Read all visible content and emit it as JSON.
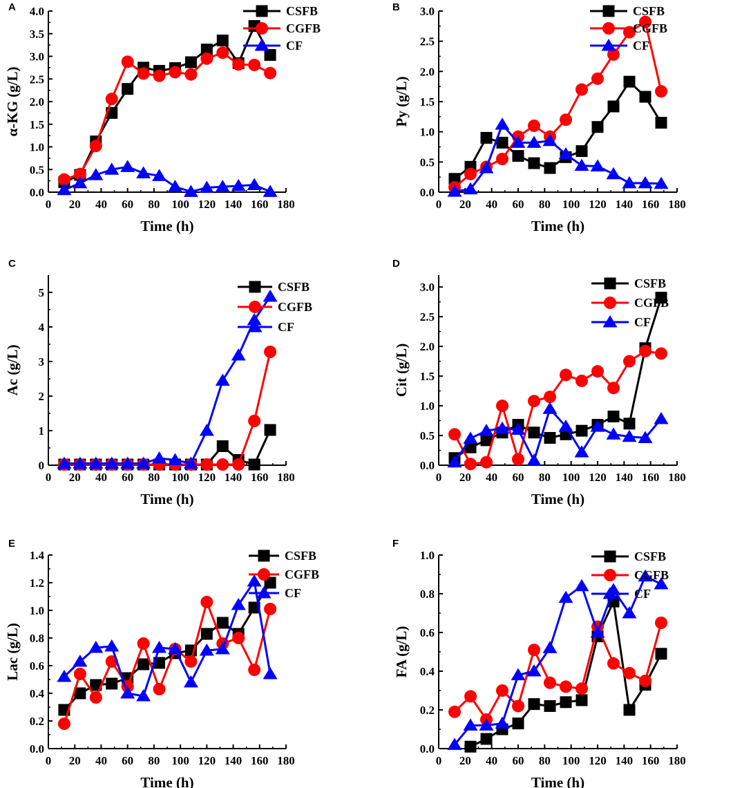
{
  "figure": {
    "colors": {
      "CSFB": "#000000",
      "CGFB": "#ff0000",
      "CF": "#0000ff"
    },
    "series_names": [
      "CSFB",
      "CGFB",
      "CF"
    ]
  },
  "chart_data": [
    {
      "panel": "A",
      "type": "line",
      "xlabel": "Time (h)",
      "ylabel": "α-KG (g/L)",
      "xlim": [
        0,
        180
      ],
      "ylim": [
        0,
        4.0
      ],
      "xticks": [
        "0",
        "20",
        "40",
        "60",
        "80",
        "100",
        "120",
        "140",
        "160",
        "180"
      ],
      "yticks": [
        "0.0",
        "0.5",
        "1.0",
        "1.5",
        "2.0",
        "2.5",
        "3.0",
        "3.5",
        "4.0"
      ],
      "ytick_values": [
        0,
        0.5,
        1,
        1.5,
        2,
        2.5,
        3,
        3.5,
        4
      ],
      "legend": [
        "CSFB",
        "CGFB",
        "CF"
      ],
      "series": [
        {
          "name": "CSFB",
          "x": [
            12,
            24,
            36,
            48,
            60,
            72,
            84,
            96,
            108,
            120,
            132,
            144,
            156,
            168
          ],
          "values": [
            0.22,
            0.38,
            1.12,
            1.75,
            2.28,
            2.75,
            2.68,
            2.74,
            2.87,
            3.15,
            3.35,
            2.85,
            3.67,
            3.03
          ]
        },
        {
          "name": "CGFB",
          "x": [
            12,
            24,
            36,
            48,
            60,
            72,
            84,
            96,
            108,
            120,
            132,
            144,
            156,
            168
          ],
          "values": [
            0.28,
            0.4,
            1.02,
            2.06,
            2.88,
            2.62,
            2.57,
            2.65,
            2.6,
            2.95,
            3.08,
            2.82,
            2.81,
            2.63
          ]
        },
        {
          "name": "CF",
          "x": [
            12,
            24,
            36,
            48,
            60,
            72,
            84,
            96,
            108,
            120,
            132,
            144,
            156,
            168
          ],
          "values": [
            0.05,
            0.2,
            0.38,
            0.5,
            0.56,
            0.42,
            0.36,
            0.12,
            0.01,
            0.1,
            0.12,
            0.14,
            0.16,
            0.01
          ]
        }
      ]
    },
    {
      "panel": "B",
      "type": "line",
      "xlabel": "Time (h)",
      "ylabel": "Py (g/L)",
      "xlim": [
        0,
        180
      ],
      "ylim": [
        0,
        3.0
      ],
      "xticks": [
        "0",
        "20",
        "40",
        "60",
        "80",
        "100",
        "120",
        "140",
        "160",
        "180"
      ],
      "yticks": [
        "0.0",
        "0.5",
        "1.0",
        "1.5",
        "2.0",
        "2.5",
        "3.0"
      ],
      "ytick_values": [
        0,
        0.5,
        1,
        1.5,
        2,
        2.5,
        3
      ],
      "legend": [
        "CSFB",
        "CGFB",
        "CF"
      ],
      "series": [
        {
          "name": "CSFB",
          "x": [
            12,
            24,
            36,
            48,
            60,
            72,
            84,
            96,
            108,
            120,
            132,
            144,
            156,
            168
          ],
          "values": [
            0.22,
            0.42,
            0.9,
            0.82,
            0.6,
            0.48,
            0.4,
            0.58,
            0.68,
            1.08,
            1.42,
            1.83,
            1.58,
            1.15
          ]
        },
        {
          "name": "CGFB",
          "x": [
            12,
            24,
            36,
            48,
            60,
            72,
            84,
            96,
            108,
            120,
            132,
            144,
            156,
            168
          ],
          "values": [
            0.08,
            0.3,
            0.42,
            0.55,
            0.92,
            1.1,
            0.92,
            1.2,
            1.7,
            1.88,
            2.28,
            2.65,
            2.82,
            1.67
          ]
        },
        {
          "name": "CF",
          "x": [
            12,
            24,
            36,
            48,
            60,
            72,
            84,
            96,
            108,
            120,
            132,
            144,
            156,
            168
          ],
          "values": [
            0.01,
            0.05,
            0.4,
            1.12,
            0.82,
            0.82,
            0.85,
            0.63,
            0.44,
            0.43,
            0.3,
            0.15,
            0.15,
            0.14
          ]
        }
      ]
    },
    {
      "panel": "C",
      "type": "line",
      "xlabel": "Time (h)",
      "ylabel": "Ac (g/L)",
      "xlim": [
        0,
        180
      ],
      "ylim": [
        0,
        5.5
      ],
      "xticks": [
        "0",
        "20",
        "40",
        "60",
        "80",
        "100",
        "120",
        "140",
        "160",
        "180"
      ],
      "yticks": [
        "0",
        "1",
        "2",
        "3",
        "4",
        "5"
      ],
      "ytick_values": [
        0,
        1,
        2,
        3,
        4,
        5
      ],
      "legend": [
        "CSFB",
        "CGFB",
        "CF"
      ],
      "series": [
        {
          "name": "CSFB",
          "x": [
            12,
            24,
            36,
            48,
            60,
            72,
            84,
            96,
            108,
            120,
            132,
            144,
            156,
            168
          ],
          "values": [
            0.02,
            0.02,
            0.02,
            0.02,
            0.02,
            0.02,
            0.02,
            0.02,
            0.02,
            0.02,
            0.55,
            0.15,
            0.02,
            1.02
          ]
        },
        {
          "name": "CGFB",
          "x": [
            12,
            24,
            36,
            48,
            60,
            72,
            84,
            96,
            108,
            120,
            132,
            144,
            156,
            168
          ],
          "values": [
            0.02,
            0.02,
            0.02,
            0.02,
            0.02,
            0.02,
            0.02,
            0.02,
            0.02,
            0.02,
            0.02,
            0.02,
            1.28,
            3.28
          ]
        },
        {
          "name": "CF",
          "x": [
            12,
            24,
            36,
            48,
            60,
            72,
            84,
            96,
            108,
            120,
            132,
            144,
            156,
            168
          ],
          "values": [
            0.05,
            0.05,
            0.05,
            0.05,
            0.05,
            0.05,
            0.2,
            0.15,
            0.05,
            1.0,
            2.45,
            3.18,
            4.2,
            4.88
          ]
        }
      ]
    },
    {
      "panel": "D",
      "type": "line",
      "xlabel": "Time (h)",
      "ylabel": "Cit (g/L)",
      "xlim": [
        0,
        180
      ],
      "ylim": [
        0,
        3.2
      ],
      "xticks": [
        "0",
        "20",
        "40",
        "60",
        "80",
        "100",
        "120",
        "140",
        "160",
        "180"
      ],
      "yticks": [
        "0.0",
        "0.5",
        "1.0",
        "1.5",
        "2.0",
        "2.5",
        "3.0"
      ],
      "ytick_values": [
        0,
        0.5,
        1,
        1.5,
        2,
        2.5,
        3
      ],
      "legend": [
        "CSFB",
        "CGFB",
        "CF"
      ],
      "series": [
        {
          "name": "CSFB",
          "x": [
            12,
            24,
            36,
            48,
            60,
            72,
            84,
            96,
            108,
            120,
            132,
            144,
            156,
            168
          ],
          "values": [
            0.12,
            0.3,
            0.42,
            0.55,
            0.68,
            0.55,
            0.46,
            0.52,
            0.58,
            0.68,
            0.82,
            0.7,
            1.97,
            2.82
          ]
        },
        {
          "name": "CGFB",
          "x": [
            12,
            24,
            36,
            48,
            60,
            72,
            84,
            96,
            108,
            120,
            132,
            144,
            156,
            168
          ],
          "values": [
            0.52,
            0.02,
            0.05,
            1.0,
            0.1,
            1.08,
            1.15,
            1.52,
            1.42,
            1.58,
            1.3,
            1.75,
            1.92,
            1.88
          ]
        },
        {
          "name": "CF",
          "x": [
            12,
            24,
            36,
            48,
            60,
            72,
            84,
            96,
            108,
            120,
            132,
            144,
            156,
            168
          ],
          "values": [
            0.05,
            0.45,
            0.58,
            0.62,
            0.6,
            0.08,
            0.95,
            0.65,
            0.22,
            0.65,
            0.52,
            0.48,
            0.46,
            0.78
          ]
        }
      ]
    },
    {
      "panel": "E",
      "type": "line",
      "xlabel": "Time (h)",
      "ylabel": "Lac (g/L)",
      "xlim": [
        0,
        180
      ],
      "ylim": [
        0,
        1.4
      ],
      "xticks": [
        "0",
        "20",
        "40",
        "60",
        "80",
        "100",
        "120",
        "140",
        "160",
        "180"
      ],
      "yticks": [
        "0.0",
        "0.2",
        "0.4",
        "0.6",
        "0.8",
        "1.0",
        "1.2",
        "1.4"
      ],
      "ytick_values": [
        0,
        0.2,
        0.4,
        0.6,
        0.8,
        1.0,
        1.2,
        1.4
      ],
      "legend": [
        "CSFB",
        "CGFB",
        "CF"
      ],
      "series": [
        {
          "name": "CSFB",
          "x": [
            12,
            24,
            36,
            48,
            60,
            72,
            84,
            96,
            108,
            120,
            132,
            144,
            156,
            168
          ],
          "values": [
            0.28,
            0.4,
            0.46,
            0.47,
            0.51,
            0.61,
            0.62,
            0.69,
            0.71,
            0.83,
            0.91,
            0.83,
            1.02,
            1.2
          ]
        },
        {
          "name": "CGFB",
          "x": [
            12,
            24,
            36,
            48,
            60,
            72,
            84,
            96,
            108,
            120,
            132,
            144,
            156,
            168
          ],
          "values": [
            0.18,
            0.54,
            0.37,
            0.63,
            0.45,
            0.76,
            0.43,
            0.72,
            0.63,
            1.06,
            0.76,
            0.8,
            0.57,
            1.01
          ]
        },
        {
          "name": "CF",
          "x": [
            12,
            24,
            36,
            48,
            60,
            72,
            84,
            96,
            108,
            120,
            132,
            144,
            156,
            168
          ],
          "values": [
            0.52,
            0.63,
            0.73,
            0.74,
            0.4,
            0.38,
            0.73,
            0.72,
            0.48,
            0.71,
            0.72,
            1.04,
            1.21,
            0.54
          ]
        }
      ]
    },
    {
      "panel": "F",
      "type": "line",
      "xlabel": "Time (h)",
      "ylabel": "FA (g/L)",
      "xlim": [
        0,
        180
      ],
      "ylim": [
        0,
        1.0
      ],
      "xticks": [
        "0",
        "20",
        "40",
        "60",
        "80",
        "100",
        "120",
        "140",
        "160",
        "180"
      ],
      "yticks": [
        "0.0",
        "0.2",
        "0.4",
        "0.6",
        "0.8",
        "1.0"
      ],
      "ytick_values": [
        0,
        0.2,
        0.4,
        0.6,
        0.8,
        1.0
      ],
      "legend": [
        "CSFB",
        "CGFB",
        "CF"
      ],
      "series": [
        {
          "name": "CSFB",
          "x": [
            24,
            36,
            48,
            60,
            72,
            84,
            96,
            108,
            120,
            132,
            144,
            156,
            168
          ],
          "values": [
            0.01,
            0.05,
            0.1,
            0.13,
            0.23,
            0.22,
            0.24,
            0.25,
            0.58,
            0.76,
            0.2,
            0.33,
            0.49
          ]
        },
        {
          "name": "CGFB",
          "x": [
            12,
            24,
            36,
            48,
            60,
            72,
            84,
            96,
            108,
            120,
            132,
            144,
            156,
            168
          ],
          "values": [
            0.19,
            0.27,
            0.15,
            0.3,
            0.22,
            0.51,
            0.34,
            0.32,
            0.31,
            0.63,
            0.44,
            0.39,
            0.35,
            0.65
          ]
        },
        {
          "name": "CF",
          "x": [
            12,
            24,
            36,
            48,
            60,
            72,
            84,
            96,
            108,
            120,
            132,
            144,
            156,
            168
          ],
          "values": [
            0.02,
            0.12,
            0.12,
            0.13,
            0.38,
            0.4,
            0.52,
            0.78,
            0.84,
            0.6,
            0.82,
            0.7,
            0.89,
            0.85
          ]
        }
      ]
    }
  ]
}
